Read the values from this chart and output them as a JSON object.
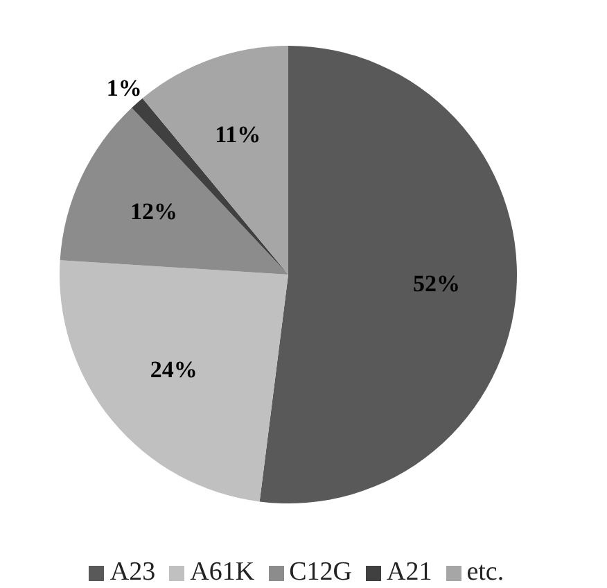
{
  "chart_data": {
    "type": "pie",
    "categories": [
      "A23",
      "A61K",
      "C12G",
      "A21",
      "etc."
    ],
    "values": [
      52,
      24,
      12,
      1,
      11
    ],
    "colors": [
      "#595959",
      "#c0c0c0",
      "#8c8c8c",
      "#404040",
      "#a6a6a6"
    ],
    "value_labels": [
      "52%",
      "24%",
      "12%",
      "1%",
      "11%"
    ],
    "legend": "bottom"
  }
}
